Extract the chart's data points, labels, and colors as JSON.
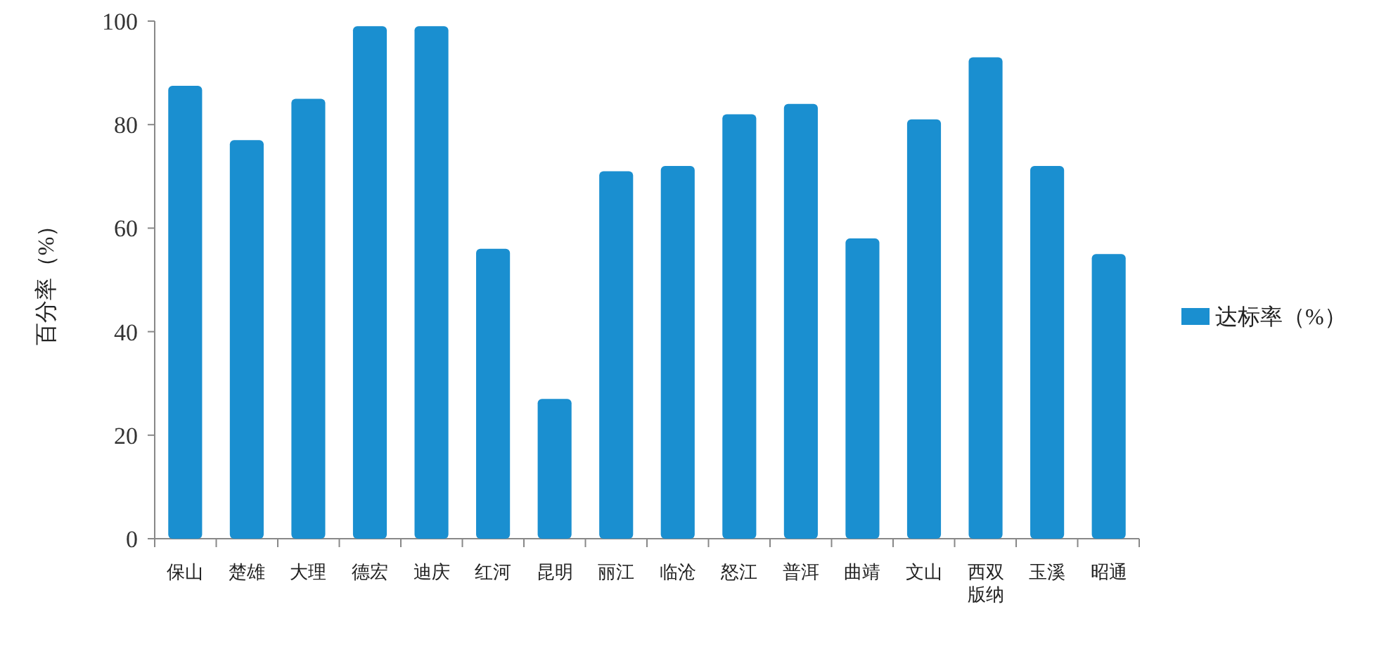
{
  "chart_data": {
    "type": "bar",
    "ylabel": "百分率（%）",
    "categories": [
      "保山",
      "楚雄",
      "大理",
      "德宏",
      "迪庆",
      "红河",
      "昆明",
      "丽江",
      "临沧",
      "怒江",
      "普洱",
      "曲靖",
      "文山",
      "西双版纳",
      "玉溪",
      "昭通"
    ],
    "series": [
      {
        "name": "达标率（%）",
        "color": "#1a8fd0",
        "values": [
          87.5,
          77,
          85,
          99,
          99,
          56,
          27,
          71,
          72,
          82,
          84,
          58,
          81,
          93,
          72,
          55
        ]
      }
    ],
    "ylim": [
      0,
      100
    ],
    "yticks": [
      0,
      20,
      40,
      60,
      80,
      100
    ],
    "grid": false,
    "legend": "right"
  }
}
